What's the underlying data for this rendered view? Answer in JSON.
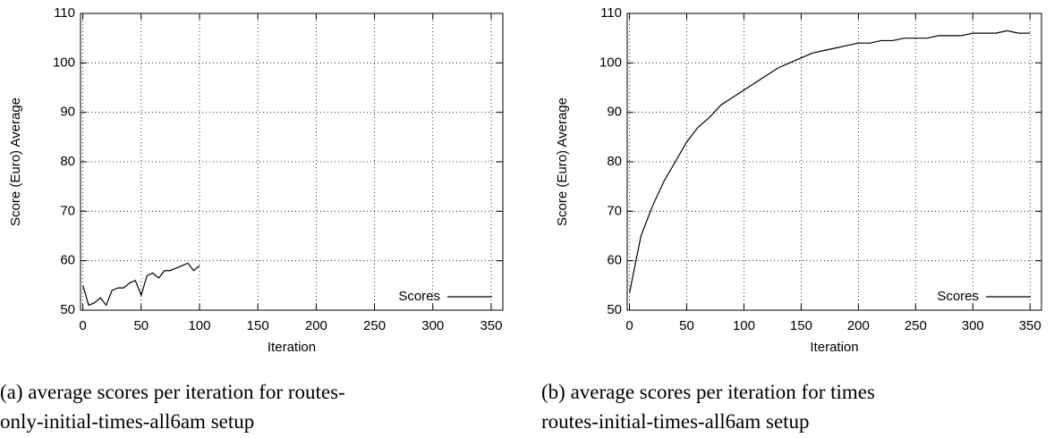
{
  "chart_data": [
    {
      "type": "line",
      "xlabel": "Iteration",
      "ylabel": "Score (Euro) Average",
      "x": [
        0,
        5,
        10,
        15,
        20,
        25,
        30,
        35,
        40,
        45,
        50,
        55,
        60,
        65,
        70,
        75,
        80,
        85,
        90,
        95,
        100
      ],
      "series": [
        {
          "name": "Scores",
          "color": "#000000",
          "values": [
            55,
            51,
            51.5,
            52.5,
            51,
            54,
            54.5,
            54.5,
            55.5,
            56,
            53,
            57,
            57.5,
            56.5,
            58,
            58,
            58.5,
            59,
            59.5,
            58,
            59
          ]
        }
      ],
      "xlim": [
        -2,
        360
      ],
      "ylim": [
        50,
        110
      ],
      "xticks": [
        0,
        50,
        100,
        150,
        200,
        250,
        300,
        350
      ],
      "yticks": [
        50,
        60,
        70,
        80,
        90,
        100,
        110
      ],
      "grid": true,
      "legend": "lower right",
      "caption": [
        "(a) average scores per iteration for routes-",
        "only-initial-times-all6am setup"
      ]
    },
    {
      "type": "line",
      "xlabel": "Iteration",
      "ylabel": "Score (Euro) Average",
      "x": [
        0,
        10,
        20,
        30,
        40,
        50,
        60,
        70,
        80,
        90,
        100,
        110,
        120,
        130,
        140,
        150,
        160,
        170,
        180,
        190,
        200,
        210,
        220,
        230,
        240,
        250,
        260,
        270,
        280,
        290,
        300,
        310,
        320,
        330,
        340,
        350
      ],
      "series": [
        {
          "name": "Scores",
          "color": "#000000",
          "values": [
            53.5,
            65,
            71,
            76,
            80,
            84,
            87,
            89,
            91.5,
            93,
            94.5,
            96,
            97.5,
            99,
            100,
            101,
            102,
            102.5,
            103,
            103.5,
            104,
            104,
            104.5,
            104.5,
            105,
            105,
            105,
            105.5,
            105.5,
            105.5,
            106,
            106,
            106,
            106.5,
            106,
            106
          ]
        }
      ],
      "xlim": [
        -2,
        360
      ],
      "ylim": [
        50,
        110
      ],
      "xticks": [
        0,
        50,
        100,
        150,
        200,
        250,
        300,
        350
      ],
      "yticks": [
        50,
        60,
        70,
        80,
        90,
        100,
        110
      ],
      "grid": true,
      "legend": "lower right",
      "caption": [
        "(b) average scores per iteration for times",
        "routes-initial-times-all6am setup"
      ]
    }
  ]
}
